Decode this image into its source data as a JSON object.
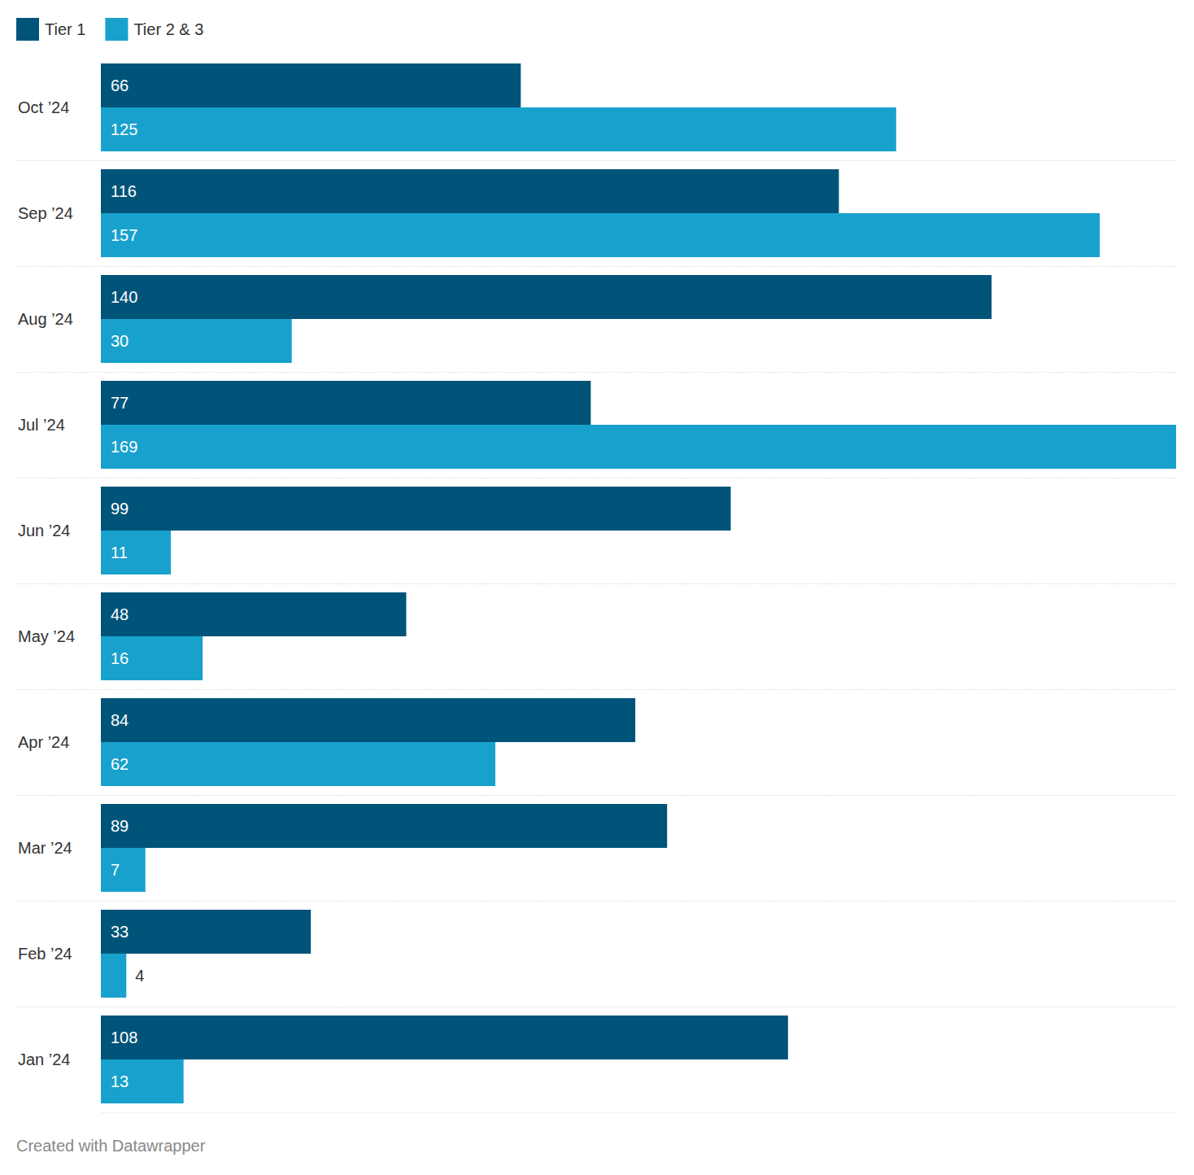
{
  "chart_data": {
    "type": "bar",
    "orientation": "horizontal",
    "data_labels": true,
    "tick_labels": "y",
    "grid": false,
    "legend": "top-left",
    "caption": "Created with Datawrapper",
    "categories": [
      "Oct ’24",
      "Sep ’24",
      "Aug ’24",
      "Jul ’24",
      "Jun ’24",
      "May ’24",
      "Apr ’24",
      "Mar ’24",
      "Feb ’24",
      "Jan ’24"
    ],
    "series": [
      {
        "name": "Tier 1",
        "color": "#015479",
        "values": [
          66,
          116,
          140,
          77,
          99,
          48,
          84,
          89,
          33,
          108
        ]
      },
      {
        "name": "Tier 2 & 3",
        "color": "#18a1cd",
        "values": [
          125,
          157,
          30,
          169,
          11,
          16,
          62,
          7,
          4,
          13
        ]
      }
    ],
    "xlim": [
      0,
      169
    ]
  }
}
